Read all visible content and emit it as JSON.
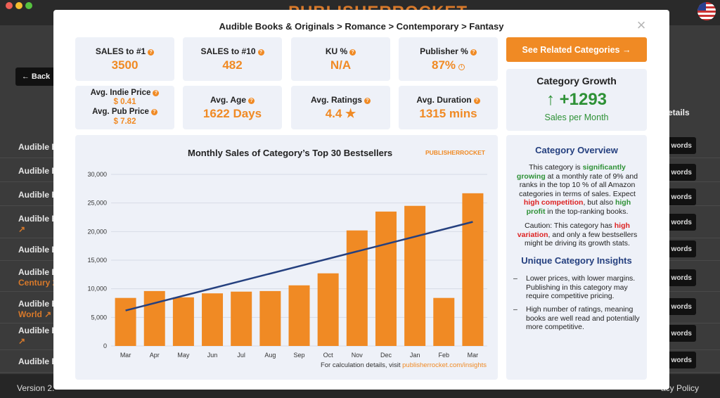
{
  "background": {
    "logo_text": "PUBLISHERROCKET",
    "back_label": "← Back",
    "details_label": "etails",
    "rows": [
      {
        "label": "Audible B",
        "sub": ""
      },
      {
        "label": "Audible B",
        "sub": ""
      },
      {
        "label": "Audible B",
        "sub": ""
      },
      {
        "label": "Audible B",
        "sub": "↗"
      },
      {
        "label": "Audible B",
        "sub": ""
      },
      {
        "label": "Audible B",
        "sub": "Century 2"
      },
      {
        "label": "Audible B",
        "sub": "World ↗"
      },
      {
        "label": "Audible B",
        "sub": "↗"
      },
      {
        "label": "Audible B",
        "sub": ""
      }
    ],
    "keyword_btn": "words",
    "version": "Version 2.",
    "policy": "acy Policy",
    "colors": {
      "accent": "#d8792a"
    }
  },
  "modal": {
    "breadcrumb": "Audible Books & Originals > Romance > Contemporary > Fantasy",
    "close": "×",
    "stats": {
      "sales_to_1": {
        "label": "SALES to #1",
        "value": "3500"
      },
      "sales_to_10": {
        "label": "SALES to #10",
        "value": "482"
      },
      "ku": {
        "label": "KU %",
        "value": "N/A"
      },
      "publisher": {
        "label": "Publisher %",
        "value": "87%"
      },
      "indie_price_label": "Avg. Indie Price",
      "indie_price_value": "$ 0.41",
      "pub_price_label": "Avg. Pub Price",
      "pub_price_value": "$ 7.82",
      "avg_age": {
        "label": "Avg. Age",
        "value": "1622 Days"
      },
      "avg_ratings": {
        "label": "Avg. Ratings",
        "value": "4.4 ★"
      },
      "avg_duration": {
        "label": "Avg. Duration",
        "value": "1315 mins"
      }
    },
    "related_button": "See Related Categories →",
    "growth": {
      "title": "Category Growth",
      "value": "↑ +1293",
      "sub": "Sales per Month"
    },
    "overview": {
      "title": "Category Overview",
      "p1_a": "This category is ",
      "p1_b": "significantly growing",
      "p1_c": " at a monthly rate of 9% and ranks in the top 10 % of all Amazon categories in terms of sales. Expect ",
      "p1_d": "high competition",
      "p1_e": ", but also ",
      "p1_f": "high profit",
      "p1_g": " in the top-ranking books.",
      "p2_a": "Caution: This category has ",
      "p2_b": "high variation",
      "p2_c": ", and only a few bestsellers might be driving its growth stats.",
      "insights_title": "Unique Category Insights",
      "bullets": [
        "Lower prices, with lower margins. Publishing in this category may require competitive pricing.",
        "High number of ratings, meaning books are well read and potentially more competitive."
      ]
    },
    "chart_footer_text": "For calculation details, visit ",
    "chart_footer_link": "publisherrocket.com/insights",
    "chart_logo": "PUBLISHERROCKET",
    "colors": {
      "orange": "#f08a24",
      "navy": "#25407f",
      "green": "#2e9136",
      "red": "#dd2222",
      "panel": "#eef1f8"
    }
  },
  "chart_data": {
    "type": "bar",
    "title": "Monthly Sales of Category’s Top 30 Bestsellers",
    "categories": [
      "Mar",
      "Apr",
      "May",
      "Jun",
      "Jul",
      "Aug",
      "Sep",
      "Oct",
      "Nov",
      "Dec",
      "Jan",
      "Feb",
      "Mar"
    ],
    "values": [
      8400,
      9600,
      8500,
      9200,
      9500,
      9600,
      10600,
      12700,
      20200,
      23500,
      24500,
      8400,
      26700
    ],
    "trendline": {
      "start": 6200,
      "end": 21700,
      "color": "#25407f"
    },
    "bar_color": "#f08a24",
    "ylim": [
      0,
      30000
    ],
    "yticks": [
      "0",
      "5,000",
      "10,000",
      "15,000",
      "20,000",
      "25,000",
      "30,000"
    ],
    "xlabel": "",
    "ylabel": "",
    "grid": true
  }
}
